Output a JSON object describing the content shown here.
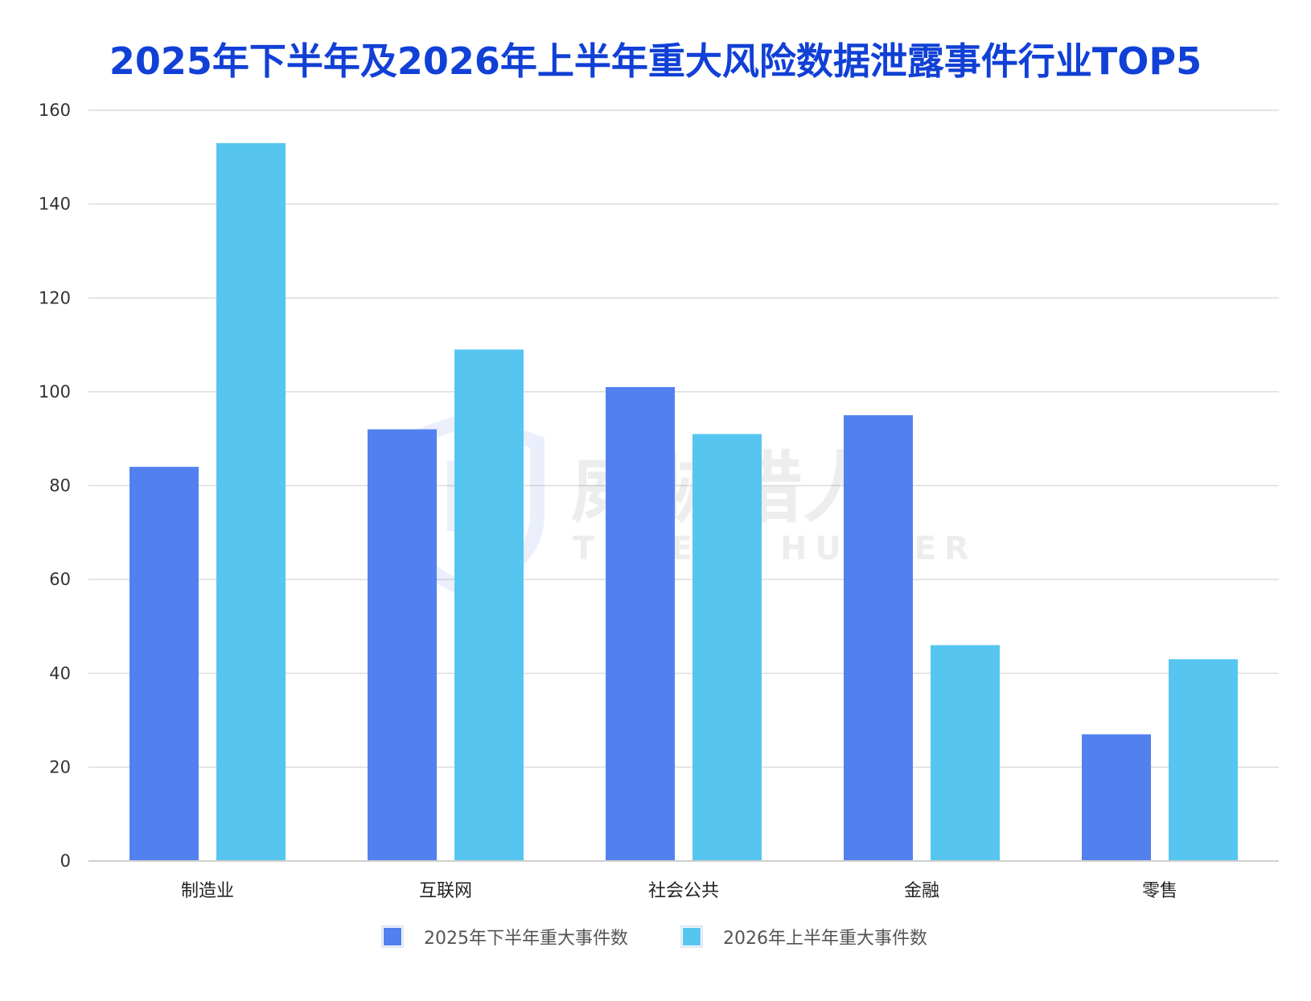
{
  "chart_data": {
    "type": "bar",
    "title": "2025年下半年及2026年上半年重大风险数据泄露事件行业TOP5",
    "categories": [
      "制造业",
      "互联网",
      "社会公共",
      "金融",
      "零售"
    ],
    "series": [
      {
        "name": "2025年下半年重大事件数",
        "color": "#5281ef",
        "values": [
          84,
          92,
          101,
          95,
          27
        ]
      },
      {
        "name": "2026年上半年重大事件数",
        "color": "#56c6f0",
        "values": [
          153,
          109,
          91,
          46,
          43
        ]
      }
    ],
    "ylim": [
      0,
      160
    ],
    "yticks": [
      0,
      20,
      40,
      60,
      80,
      100,
      120,
      140,
      160
    ],
    "xlabel": "",
    "ylabel": "",
    "grid": true,
    "legend_position": "bottom",
    "title_color": "#1140d6"
  },
  "watermark": {
    "text_cn": "威胁猎人",
    "text_en": "THREAT HUNTER"
  }
}
